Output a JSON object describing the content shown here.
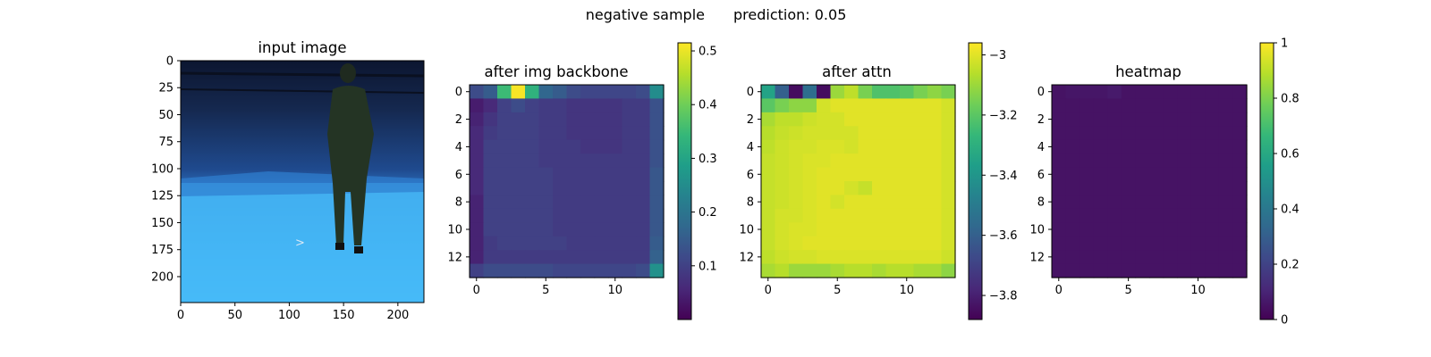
{
  "figure": {
    "suptitle_left": "negative sample",
    "suptitle_right": "prediction: 0.05"
  },
  "colormaps": {
    "viridis": [
      "#440154",
      "#482878",
      "#3e4989",
      "#31688e",
      "#26828e",
      "#1f9e89",
      "#35b779",
      "#6ece58",
      "#b5de2b",
      "#fde725"
    ]
  },
  "chart_data": [
    {
      "type": "image",
      "title": "input image",
      "xlim": [
        0,
        224
      ],
      "ylim": [
        224,
        0
      ],
      "xticks": [
        0,
        50,
        100,
        150,
        200
      ],
      "yticks": [
        0,
        25,
        50,
        75,
        100,
        125,
        150,
        175,
        200
      ],
      "content": "photo of a person in a dark suit standing in a blue-lit room"
    },
    {
      "type": "heatmap",
      "title": "after img backbone",
      "xticks": [
        0,
        5,
        10
      ],
      "yticks": [
        0,
        2,
        4,
        6,
        8,
        10,
        12
      ],
      "colorbar": {
        "range": [
          0.0,
          0.515
        ],
        "ticks": [
          0.1,
          0.2,
          0.3,
          0.4,
          0.5
        ]
      },
      "values": [
        [
          0.12,
          0.15,
          0.35,
          0.51,
          0.33,
          0.17,
          0.15,
          0.12,
          0.11,
          0.11,
          0.11,
          0.11,
          0.12,
          0.25
        ],
        [
          0.04,
          0.06,
          0.1,
          0.12,
          0.1,
          0.09,
          0.09,
          0.08,
          0.08,
          0.08,
          0.08,
          0.09,
          0.09,
          0.13
        ],
        [
          0.05,
          0.08,
          0.1,
          0.1,
          0.1,
          0.09,
          0.09,
          0.08,
          0.08,
          0.08,
          0.08,
          0.09,
          0.09,
          0.13
        ],
        [
          0.06,
          0.09,
          0.1,
          0.1,
          0.1,
          0.09,
          0.09,
          0.08,
          0.08,
          0.08,
          0.08,
          0.09,
          0.09,
          0.13
        ],
        [
          0.06,
          0.1,
          0.1,
          0.1,
          0.1,
          0.09,
          0.09,
          0.09,
          0.08,
          0.08,
          0.08,
          0.09,
          0.09,
          0.13
        ],
        [
          0.06,
          0.1,
          0.1,
          0.1,
          0.1,
          0.09,
          0.09,
          0.09,
          0.09,
          0.09,
          0.09,
          0.09,
          0.09,
          0.13
        ],
        [
          0.06,
          0.1,
          0.1,
          0.1,
          0.1,
          0.1,
          0.09,
          0.09,
          0.09,
          0.09,
          0.09,
          0.09,
          0.09,
          0.14
        ],
        [
          0.06,
          0.1,
          0.1,
          0.1,
          0.1,
          0.1,
          0.09,
          0.09,
          0.09,
          0.09,
          0.09,
          0.09,
          0.09,
          0.14
        ],
        [
          0.05,
          0.1,
          0.1,
          0.1,
          0.1,
          0.1,
          0.09,
          0.09,
          0.09,
          0.09,
          0.09,
          0.09,
          0.09,
          0.14
        ],
        [
          0.05,
          0.1,
          0.1,
          0.1,
          0.1,
          0.1,
          0.09,
          0.09,
          0.09,
          0.09,
          0.09,
          0.09,
          0.09,
          0.14
        ],
        [
          0.05,
          0.1,
          0.1,
          0.1,
          0.1,
          0.1,
          0.09,
          0.09,
          0.09,
          0.09,
          0.09,
          0.09,
          0.09,
          0.14
        ],
        [
          0.05,
          0.09,
          0.1,
          0.1,
          0.1,
          0.1,
          0.1,
          0.09,
          0.09,
          0.09,
          0.09,
          0.09,
          0.09,
          0.15
        ],
        [
          0.05,
          0.09,
          0.09,
          0.09,
          0.09,
          0.09,
          0.09,
          0.09,
          0.09,
          0.09,
          0.09,
          0.09,
          0.09,
          0.16
        ],
        [
          0.1,
          0.12,
          0.12,
          0.12,
          0.12,
          0.12,
          0.11,
          0.11,
          0.11,
          0.11,
          0.11,
          0.11,
          0.12,
          0.26
        ]
      ]
    },
    {
      "type": "heatmap",
      "title": "after attn",
      "xticks": [
        0,
        5,
        10
      ],
      "yticks": [
        0,
        2,
        4,
        6,
        8,
        10,
        12
      ],
      "colorbar": {
        "range": [
          -3.88,
          -2.96
        ],
        "ticks": [
          -3.0,
          -3.2,
          -3.4,
          -3.6,
          -3.8
        ]
      },
      "values": [
        [
          -3.35,
          -3.6,
          -3.85,
          -3.55,
          -3.85,
          -3.1,
          -3.05,
          -3.15,
          -3.22,
          -3.22,
          -3.2,
          -3.15,
          -3.12,
          -3.15
        ],
        [
          -3.2,
          -3.15,
          -3.12,
          -3.12,
          -3.02,
          -3.0,
          -3.0,
          -3.0,
          -3.0,
          -3.0,
          -3.0,
          -3.0,
          -3.0,
          -3.02
        ],
        [
          -3.08,
          -3.05,
          -3.05,
          -3.03,
          -3.02,
          -3.02,
          -3.0,
          -3.0,
          -3.0,
          -3.0,
          -3.0,
          -3.0,
          -3.0,
          -3.02
        ],
        [
          -3.06,
          -3.04,
          -3.03,
          -3.02,
          -3.02,
          -3.02,
          -3.02,
          -3.0,
          -3.0,
          -3.0,
          -3.0,
          -3.0,
          -3.0,
          -3.02
        ],
        [
          -3.05,
          -3.03,
          -3.02,
          -3.02,
          -3.01,
          -3.01,
          -3.02,
          -3.0,
          -3.0,
          -3.0,
          -3.0,
          -3.0,
          -3.0,
          -3.02
        ],
        [
          -3.04,
          -3.03,
          -3.02,
          -3.01,
          -3.01,
          -3.0,
          -3.0,
          -3.0,
          -3.0,
          -3.0,
          -3.0,
          -3.0,
          -3.0,
          -3.02
        ],
        [
          -3.04,
          -3.03,
          -3.02,
          -3.01,
          -3.0,
          -3.0,
          -3.0,
          -3.0,
          -3.0,
          -3.0,
          -3.0,
          -3.0,
          -3.0,
          -3.02
        ],
        [
          -3.04,
          -3.03,
          -3.02,
          -3.01,
          -3.0,
          -3.0,
          -3.02,
          -3.04,
          -3.0,
          -3.0,
          -3.0,
          -3.0,
          -3.0,
          -3.02
        ],
        [
          -3.04,
          -3.03,
          -3.02,
          -3.01,
          -3.0,
          -3.02,
          -3.0,
          -3.0,
          -3.0,
          -3.0,
          -3.0,
          -3.0,
          -3.0,
          -3.02
        ],
        [
          -3.04,
          -3.02,
          -3.02,
          -3.01,
          -3.0,
          -3.0,
          -3.0,
          -3.0,
          -3.0,
          -3.0,
          -3.0,
          -3.0,
          -3.0,
          -3.02
        ],
        [
          -3.04,
          -3.02,
          -3.01,
          -3.01,
          -3.0,
          -3.0,
          -3.0,
          -3.0,
          -3.0,
          -3.0,
          -3.0,
          -3.0,
          -3.0,
          -3.02
        ],
        [
          -3.04,
          -3.02,
          -3.01,
          -3.0,
          -3.0,
          -3.0,
          -3.0,
          -3.0,
          -3.0,
          -3.0,
          -3.0,
          -3.0,
          -3.0,
          -3.02
        ],
        [
          -3.05,
          -3.03,
          -3.02,
          -3.02,
          -3.01,
          -3.01,
          -3.01,
          -3.01,
          -3.01,
          -3.01,
          -3.01,
          -3.01,
          -3.01,
          -3.03
        ],
        [
          -3.08,
          -3.06,
          -3.1,
          -3.1,
          -3.1,
          -3.08,
          -3.06,
          -3.06,
          -3.08,
          -3.06,
          -3.06,
          -3.08,
          -3.08,
          -3.12
        ]
      ]
    },
    {
      "type": "heatmap",
      "title": "heatmap",
      "xticks": [
        0,
        5,
        10
      ],
      "yticks": [
        0,
        2,
        4,
        6,
        8,
        10,
        12
      ],
      "colorbar": {
        "range": [
          0.0,
          1.0
        ],
        "ticks": [
          0.0,
          0.2,
          0.4,
          0.6,
          0.8,
          1.0
        ]
      },
      "values": [
        [
          0.05,
          0.06,
          0.06,
          0.06,
          0.07,
          0.05,
          0.05,
          0.05,
          0.05,
          0.05,
          0.05,
          0.05,
          0.05,
          0.05
        ],
        [
          0.05,
          0.05,
          0.05,
          0.05,
          0.05,
          0.05,
          0.05,
          0.05,
          0.05,
          0.05,
          0.05,
          0.05,
          0.05,
          0.05
        ],
        [
          0.05,
          0.05,
          0.05,
          0.05,
          0.05,
          0.05,
          0.05,
          0.05,
          0.05,
          0.05,
          0.05,
          0.05,
          0.05,
          0.05
        ],
        [
          0.05,
          0.05,
          0.05,
          0.05,
          0.05,
          0.05,
          0.05,
          0.05,
          0.05,
          0.05,
          0.05,
          0.05,
          0.05,
          0.05
        ],
        [
          0.05,
          0.05,
          0.05,
          0.05,
          0.05,
          0.05,
          0.05,
          0.05,
          0.05,
          0.05,
          0.05,
          0.05,
          0.05,
          0.05
        ],
        [
          0.05,
          0.05,
          0.05,
          0.05,
          0.05,
          0.05,
          0.05,
          0.05,
          0.05,
          0.05,
          0.05,
          0.05,
          0.05,
          0.05
        ],
        [
          0.05,
          0.05,
          0.05,
          0.05,
          0.05,
          0.05,
          0.05,
          0.05,
          0.05,
          0.05,
          0.05,
          0.05,
          0.05,
          0.05
        ],
        [
          0.05,
          0.05,
          0.05,
          0.05,
          0.05,
          0.05,
          0.05,
          0.05,
          0.05,
          0.05,
          0.05,
          0.05,
          0.05,
          0.05
        ],
        [
          0.05,
          0.05,
          0.05,
          0.05,
          0.05,
          0.05,
          0.05,
          0.05,
          0.05,
          0.05,
          0.05,
          0.05,
          0.05,
          0.05
        ],
        [
          0.05,
          0.05,
          0.05,
          0.05,
          0.05,
          0.05,
          0.05,
          0.05,
          0.05,
          0.05,
          0.05,
          0.05,
          0.05,
          0.05
        ],
        [
          0.05,
          0.05,
          0.05,
          0.05,
          0.05,
          0.05,
          0.05,
          0.05,
          0.05,
          0.05,
          0.05,
          0.05,
          0.05,
          0.05
        ],
        [
          0.05,
          0.05,
          0.05,
          0.05,
          0.05,
          0.05,
          0.05,
          0.05,
          0.05,
          0.05,
          0.05,
          0.05,
          0.05,
          0.05
        ],
        [
          0.05,
          0.05,
          0.05,
          0.05,
          0.05,
          0.05,
          0.05,
          0.05,
          0.05,
          0.05,
          0.05,
          0.05,
          0.05,
          0.05
        ],
        [
          0.05,
          0.05,
          0.05,
          0.05,
          0.05,
          0.05,
          0.05,
          0.05,
          0.05,
          0.05,
          0.05,
          0.05,
          0.05,
          0.05
        ]
      ]
    }
  ]
}
